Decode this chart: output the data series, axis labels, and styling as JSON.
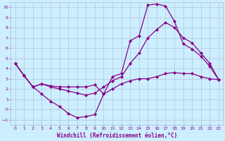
{
  "xlabel": "Windchill (Refroidissement éolien,°C)",
  "ylabel": "",
  "xlim": [
    -0.5,
    23.5
  ],
  "ylim": [
    -1.5,
    10.5
  ],
  "xticks": [
    0,
    1,
    2,
    3,
    4,
    5,
    6,
    7,
    8,
    9,
    10,
    11,
    12,
    13,
    14,
    15,
    16,
    17,
    18,
    19,
    20,
    21,
    22,
    23
  ],
  "yticks": [
    -1,
    0,
    1,
    2,
    3,
    4,
    5,
    6,
    7,
    8,
    9,
    10
  ],
  "background_color": "#cceeff",
  "grid_color": "#aabbcc",
  "line_color": "#880088",
  "line_width": 0.9,
  "marker": "D",
  "marker_size": 2.0,
  "lines": [
    {
      "x": [
        0,
        1,
        2,
        3,
        4,
        5,
        6,
        7,
        8,
        9,
        10,
        11,
        12,
        13,
        14,
        15,
        16,
        17,
        18,
        19,
        20,
        21,
        22,
        23
      ],
      "y": [
        4.5,
        3.3,
        2.2,
        1.5,
        0.8,
        0.3,
        -0.4,
        -0.8,
        -0.7,
        -0.5,
        1.5,
        3.2,
        3.5,
        6.7,
        7.2,
        10.2,
        10.3,
        10.1,
        8.6,
        6.4,
        5.9,
        5.2,
        4.2,
        2.9
      ]
    },
    {
      "x": [
        0,
        1,
        2,
        3,
        4,
        5,
        6,
        7,
        8,
        9,
        10,
        11,
        12,
        13,
        14,
        15,
        16,
        17,
        18,
        19,
        20,
        21,
        22,
        23
      ],
      "y": [
        4.5,
        3.3,
        2.2,
        2.5,
        2.2,
        2.0,
        1.8,
        1.6,
        1.4,
        1.6,
        2.2,
        2.8,
        3.2,
        4.5,
        5.5,
        7.0,
        7.8,
        8.5,
        8.0,
        7.0,
        6.5,
        5.5,
        4.5,
        2.9
      ]
    },
    {
      "x": [
        0,
        1,
        2,
        3,
        4,
        5,
        6,
        7,
        8,
        9,
        10,
        11,
        12,
        13,
        14,
        15,
        16,
        17,
        18,
        19,
        20,
        21,
        22,
        23
      ],
      "y": [
        4.5,
        3.3,
        2.2,
        2.5,
        2.3,
        2.2,
        2.2,
        2.2,
        2.2,
        2.4,
        1.5,
        2.0,
        2.5,
        2.8,
        3.0,
        3.0,
        3.2,
        3.5,
        3.6,
        3.5,
        3.5,
        3.2,
        3.0,
        2.9
      ]
    }
  ]
}
